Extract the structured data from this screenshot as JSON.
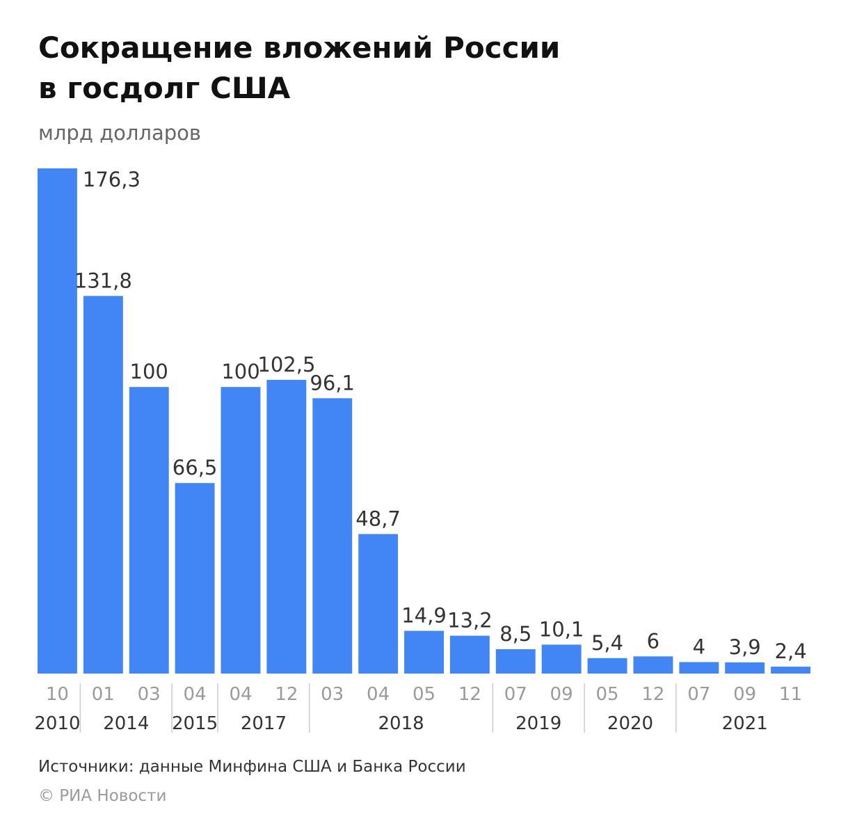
{
  "header": {
    "title_line1": "Сокращение вложений России",
    "title_line2": "в госдолг США",
    "subtitle": "млрд долларов"
  },
  "footer": {
    "sources": "Источники: данные Минфина США и Банка России",
    "copyright": "© РИА Новости"
  },
  "colors": {
    "bar": "#4285f4",
    "value_text": "#333333",
    "month_text": "#9a9a9a",
    "year_text": "#333333",
    "divider": "#cccccc"
  },
  "chart_data": {
    "type": "bar",
    "title": "Сокращение вложений России в госдолг США",
    "ylabel": "млрд долларов",
    "ylim": [
      0,
      176.3
    ],
    "grid": false,
    "legend": "none",
    "categories": [
      "10",
      "01",
      "03",
      "04",
      "04",
      "12",
      "03",
      "04",
      "05",
      "12",
      "07",
      "09",
      "05",
      "12",
      "07",
      "09",
      "11"
    ],
    "values": [
      176.3,
      131.8,
      100,
      66.5,
      100,
      102.5,
      96.1,
      48.7,
      14.9,
      13.2,
      8.5,
      10.1,
      5.4,
      6,
      4,
      3.9,
      2.4
    ],
    "value_labels": [
      "176,3",
      "131,8",
      "100",
      "66,5",
      "100",
      "102,5",
      "96,1",
      "48,7",
      "14,9",
      "13,2",
      "8,5",
      "10,1",
      "5,4",
      "6",
      "4",
      "3,9",
      "2,4"
    ],
    "years": [
      {
        "label": "2010",
        "start": 0,
        "end": 0
      },
      {
        "label": "2014",
        "start": 1,
        "end": 2
      },
      {
        "label": "2015",
        "start": 3,
        "end": 3
      },
      {
        "label": "2017",
        "start": 4,
        "end": 5
      },
      {
        "label": "2018",
        "start": 6,
        "end": 9
      },
      {
        "label": "2019",
        "start": 10,
        "end": 11
      },
      {
        "label": "2020",
        "start": 12,
        "end": 13
      },
      {
        "label": "2021",
        "start": 14,
        "end": 16
      }
    ]
  }
}
